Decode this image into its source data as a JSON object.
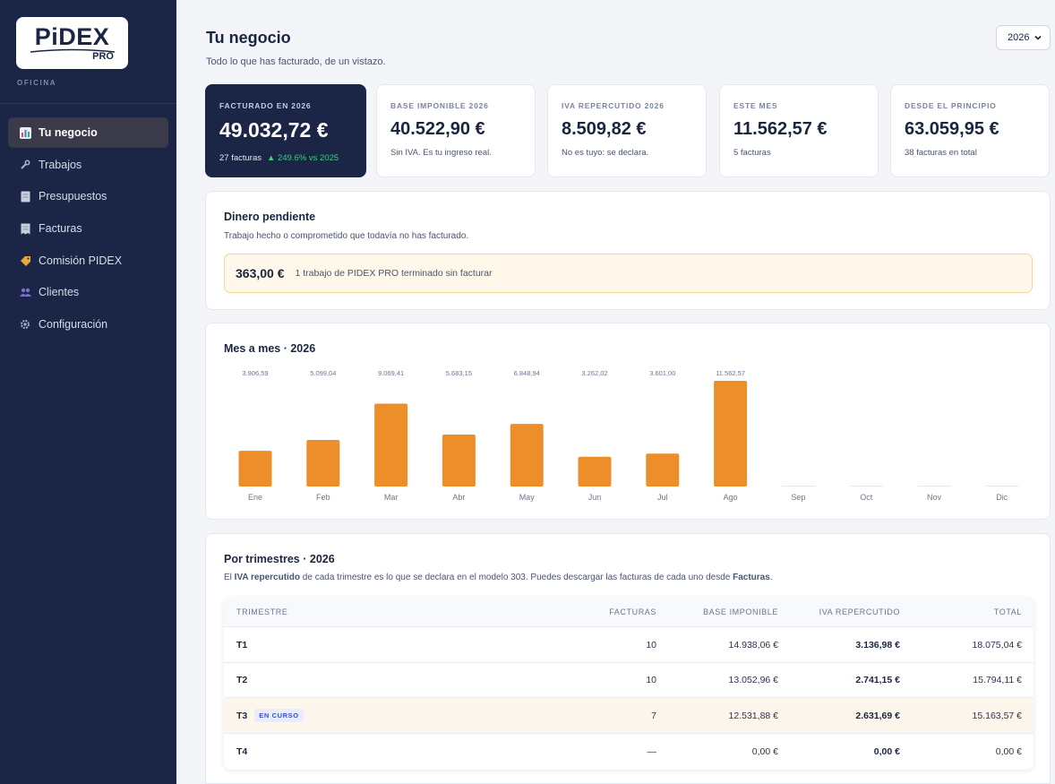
{
  "sidebar": {
    "logo_text": "PiDEX",
    "logo_sub": "PRO",
    "caption": "OFICINA",
    "items": [
      {
        "label": "Tu negocio",
        "icon": "bar-chart-icon",
        "active": true
      },
      {
        "label": "Trabajos",
        "icon": "wrench-icon"
      },
      {
        "label": "Presupuestos",
        "icon": "document-icon"
      },
      {
        "label": "Facturas",
        "icon": "receipt-icon"
      },
      {
        "label": "Comisión PIDEX",
        "icon": "tag-icon"
      },
      {
        "label": "Clientes",
        "icon": "users-icon"
      },
      {
        "label": "Configuración",
        "icon": "gear-icon"
      }
    ]
  },
  "header": {
    "title": "Tu negocio",
    "subtitle": "Todo lo que has facturado, de un vistazo.",
    "year_selected": "2026"
  },
  "kpis": [
    {
      "label": "FACTURADO EN 2026",
      "value": "49.032,72 €",
      "note": "27 facturas",
      "trend": "▲ 249.6% vs 2025"
    },
    {
      "label": "BASE IMPONIBLE 2026",
      "value": "40.522,90 €",
      "note": "Sin IVA. Es tu ingreso real."
    },
    {
      "label": "IVA REPERCUTIDO 2026",
      "value": "8.509,82 €",
      "note": "No es tuyo: se declara."
    },
    {
      "label": "ESTE MES",
      "value": "11.562,57 €",
      "note": "5 facturas"
    },
    {
      "label": "DESDE EL PRINCIPIO",
      "value": "63.059,95 €",
      "note": "38 facturas en total"
    }
  ],
  "pending": {
    "title": "Dinero pendiente",
    "description": "Trabajo hecho o comprometido que todavía no has facturado.",
    "amount": "363,00 €",
    "text": "1 trabajo de PIDEX PRO terminado sin facturar"
  },
  "monthly": {
    "title": "Mes a mes · 2026"
  },
  "chart_data": {
    "type": "bar",
    "title": "Mes a mes · 2026",
    "categories": [
      "Ene",
      "Feb",
      "Mar",
      "Abr",
      "May",
      "Jun",
      "Jul",
      "Ago",
      "Sep",
      "Oct",
      "Nov",
      "Dic"
    ],
    "values": [
      3906.59,
      5099.04,
      9069.41,
      5683.15,
      6848.94,
      3262.02,
      3601.0,
      11562.57,
      0,
      0,
      0,
      0
    ],
    "value_labels": [
      "3.906,59",
      "5.099,04",
      "9.069,41",
      "5.683,15",
      "6.848,94",
      "3.262,02",
      "3.601,00",
      "11.562,57",
      "",
      "",
      "",
      ""
    ],
    "bar_color": "#ec8f2a",
    "xlabel": "",
    "ylabel": "",
    "grid": false
  },
  "quarters": {
    "title": "Por trimestres · 2026",
    "desc_pre": "El ",
    "desc_bold1": "IVA repercutido",
    "desc_mid": " de cada trimestre es lo que se declara en el modelo 303. Puedes descargar las facturas de cada uno desde ",
    "desc_bold2": "Facturas",
    "desc_post": ".",
    "headers": {
      "quarter": "TRIMESTRE",
      "invoices": "FACTURAS",
      "base": "BASE IMPONIBLE",
      "iva": "IVA REPERCUTIDO",
      "total": "TOTAL"
    },
    "rows": [
      {
        "quarter": "T1",
        "badge": "",
        "invoices": "10",
        "base": "14.938,06 €",
        "iva": "3.136,98 €",
        "total": "18.075,04 €"
      },
      {
        "quarter": "T2",
        "badge": "",
        "invoices": "10",
        "base": "13.052,96 €",
        "iva": "2.741,15 €",
        "total": "15.794,11 €"
      },
      {
        "quarter": "T3",
        "badge": "EN CURSO",
        "invoices": "7",
        "base": "12.531,88 €",
        "iva": "2.631,69 €",
        "total": "15.163,57 €"
      },
      {
        "quarter": "T4",
        "badge": "",
        "invoices": "—",
        "base": "0,00 €",
        "iva": "0,00 €",
        "total": "0,00 €"
      }
    ]
  }
}
